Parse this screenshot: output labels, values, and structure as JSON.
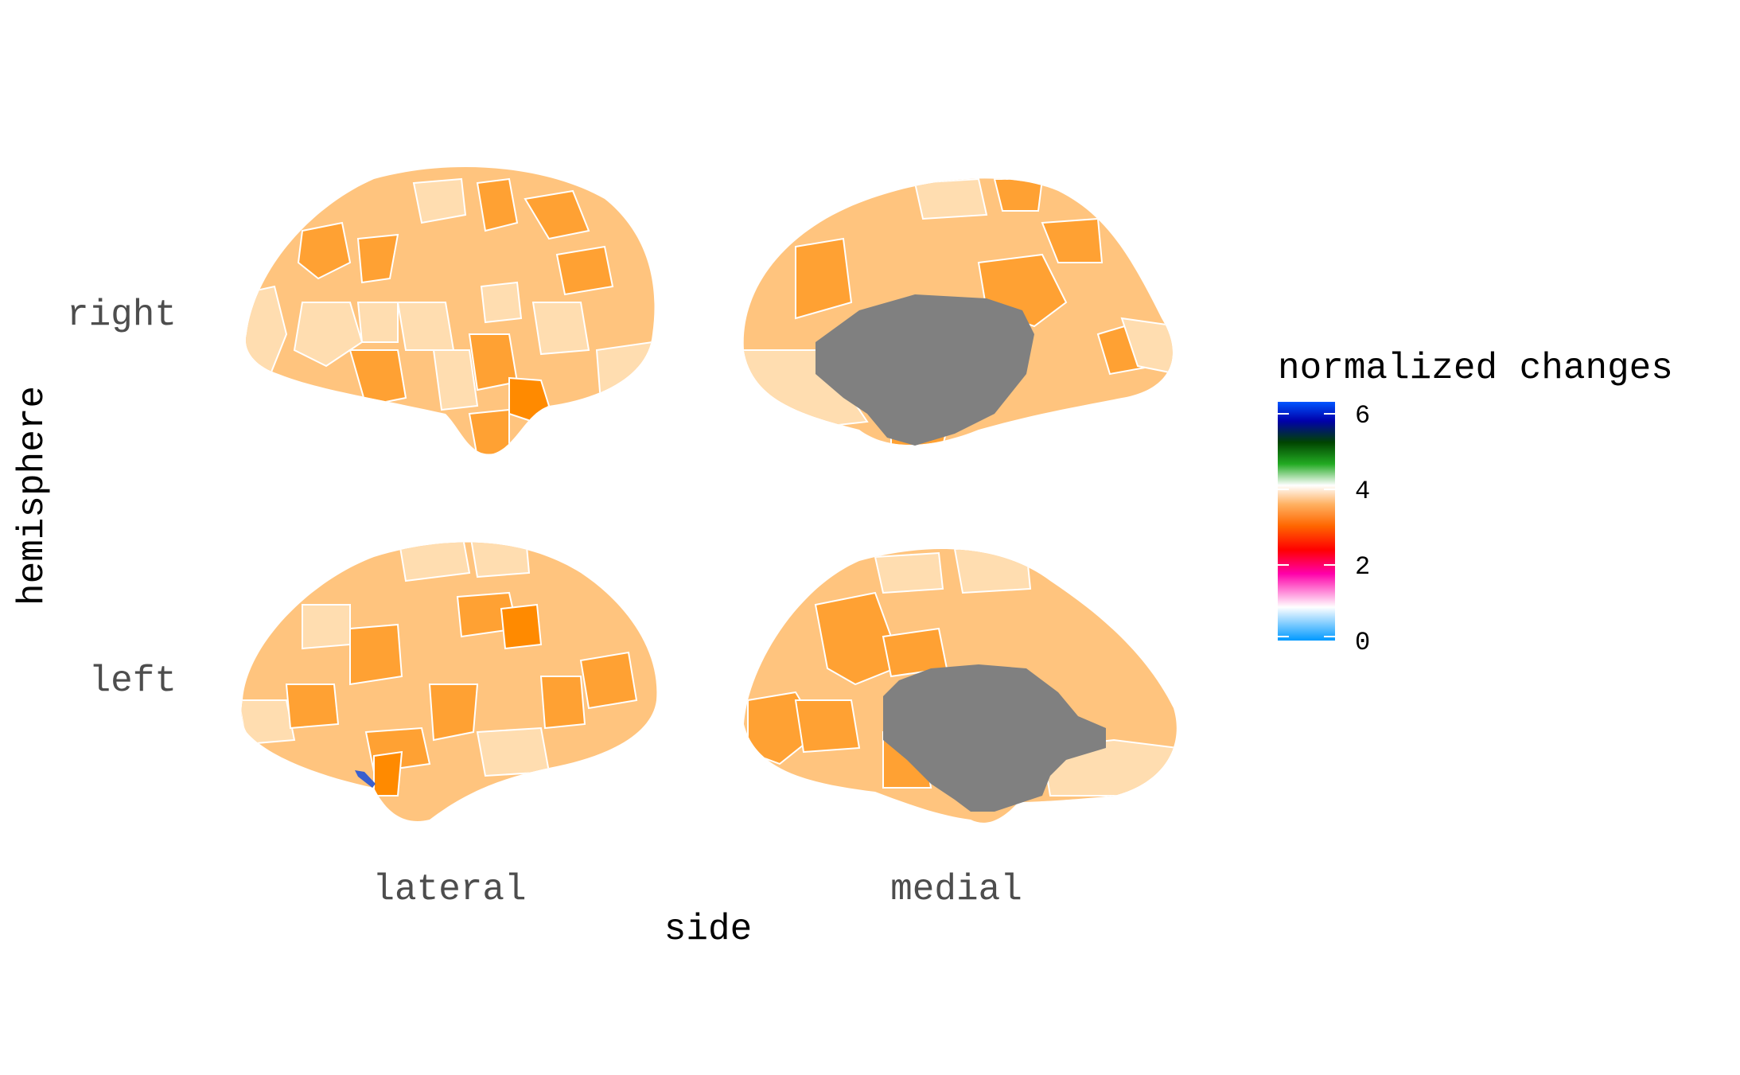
{
  "plot": {
    "row_labels": [
      "right",
      "left"
    ],
    "col_labels": [
      "lateral",
      "medial"
    ],
    "y_title": "hemisphere",
    "x_title": "side"
  },
  "legend": {
    "title": "normalized changes",
    "ticks": [
      "6",
      "4",
      "2",
      "0"
    ],
    "gradient": [
      "#0055ff",
      "#0000aa",
      "#004400",
      "#22aa22",
      "#ffffff",
      "#ffb060",
      "#ff6600",
      "#ff0000",
      "#ff00aa",
      "#ffffff",
      "#0099ff"
    ]
  },
  "colors": {
    "light": "#ffddb0",
    "mid": "#ffc47e",
    "strong": "#ffa133",
    "hot": "#ff8a00",
    "wall": "#808080",
    "boundary": "#ffffff"
  }
}
